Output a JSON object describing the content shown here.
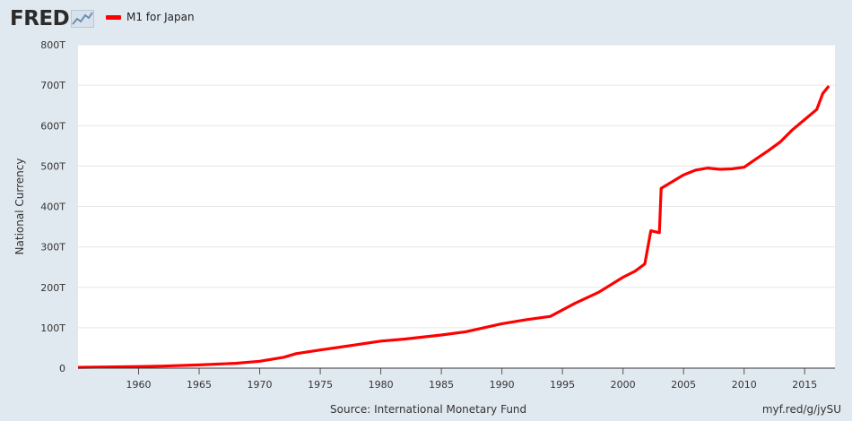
{
  "logo": {
    "text": "FRED"
  },
  "legend": {
    "label": "M1 for Japan",
    "color": "#ff0000"
  },
  "footer": {
    "source": "Source: International Monetary Fund",
    "url": "myf.red/g/jySU"
  },
  "chart_data": {
    "type": "line",
    "ylabel": "National Currency",
    "xlim": [
      1955,
      2017.5
    ],
    "ylim": [
      0,
      800
    ],
    "y_ticks": [
      0,
      100,
      200,
      300,
      400,
      500,
      600,
      700,
      800
    ],
    "y_tick_labels": [
      "0",
      "100T",
      "200T",
      "300T",
      "400T",
      "500T",
      "600T",
      "700T",
      "800T"
    ],
    "x_ticks": [
      1960,
      1965,
      1970,
      1975,
      1980,
      1985,
      1990,
      1995,
      2000,
      2005,
      2010,
      2015
    ],
    "x_tick_labels": [
      "1960",
      "1965",
      "1970",
      "1975",
      "1980",
      "1985",
      "1990",
      "1995",
      "2000",
      "2005",
      "2010",
      "2015"
    ],
    "grid": true,
    "legend_position": "top-left",
    "series": [
      {
        "name": "M1 for Japan",
        "color": "#ff0000",
        "x": [
          1955,
          1958,
          1960,
          1962,
          1965,
          1968,
          1970,
          1972,
          1973,
          1975,
          1978,
          1980,
          1982,
          1985,
          1987,
          1990,
          1992,
          1994,
          1996,
          1998,
          2000,
          2001,
          2001.8,
          2002.3,
          2003,
          2003.15,
          2004,
          2005,
          2006,
          2007,
          2008,
          2009,
          2010,
          2011,
          2012,
          2013,
          2014,
          2015,
          2016,
          2016.5,
          2017
        ],
        "y": [
          2,
          3,
          4,
          5,
          8,
          12,
          17,
          27,
          36,
          45,
          58,
          67,
          72,
          82,
          90,
          110,
          120,
          128,
          160,
          188,
          225,
          240,
          258,
          340,
          335,
          445,
          460,
          478,
          490,
          495,
          492,
          493,
          497,
          518,
          538,
          560,
          590,
          615,
          640,
          680,
          698
        ]
      }
    ]
  }
}
